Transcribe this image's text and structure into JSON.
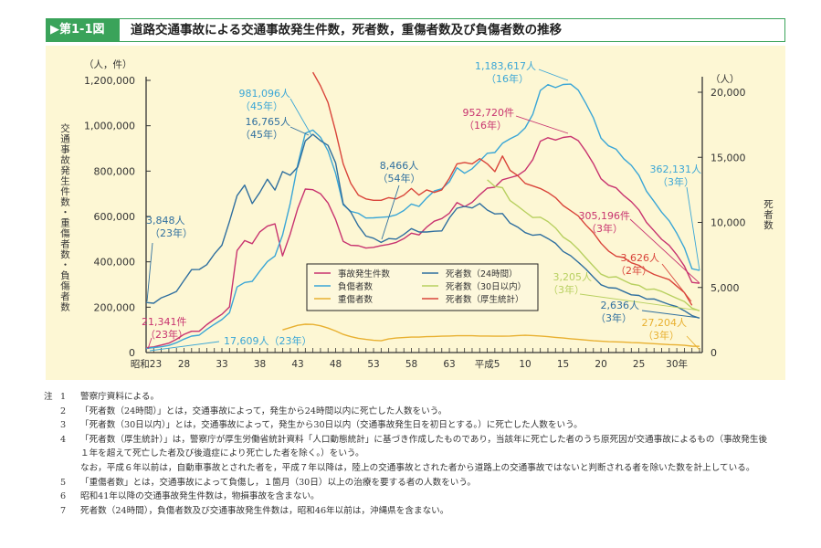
{
  "header": {
    "figure_no": "▶第1-1図",
    "title": "道路交通事故による交通事故発生件数，死者数，重傷者数及び負傷者数の推移"
  },
  "chart_data": {
    "type": "line",
    "title": "道路交通事故による交通事故発生件数，死者数，重傷者数及び負傷者数の推移",
    "x_tick_labels": [
      "昭和23",
      "28",
      "33",
      "38",
      "43",
      "48",
      "53",
      "58",
      "63",
      "平成5",
      "10",
      "15",
      "20",
      "25",
      "30年"
    ],
    "x_tick_years": [
      1948,
      1953,
      1958,
      1963,
      1968,
      1973,
      1978,
      1983,
      1988,
      1993,
      1998,
      2003,
      2008,
      2013,
      2018
    ],
    "xlim": [
      1948,
      2021
    ],
    "y_left": {
      "label": "交通事故発生件数・重傷者数・負傷者数",
      "unit": "（人，件）",
      "ylim": [
        0,
        1200000
      ],
      "ticks": [
        "0",
        "200,000",
        "400,000",
        "600,000",
        "800,000",
        "1,000,000",
        "1,200,000"
      ],
      "tick_values": [
        0,
        200000,
        400000,
        600000,
        800000,
        1000000,
        1200000
      ]
    },
    "y_right": {
      "label": "死者数",
      "unit": "（人）",
      "ylim": [
        0,
        20000
      ],
      "ticks": [
        "0",
        "5,000",
        "10,000",
        "15,000",
        "20,000"
      ],
      "tick_values": [
        0,
        5000,
        10000,
        15000,
        20000
      ]
    },
    "grid": false,
    "legend_position": "center-bottom",
    "series": [
      {
        "name": "事故発生件数",
        "axis": "left",
        "color": "#c8336f",
        "start": 1948,
        "values": [
          21341,
          25113,
          33212,
          41423,
          58487,
          80019,
          93869,
          93981,
          122691,
          146833,
          168799,
          201292,
          449917,
          493693,
          479825,
          531966,
          557183,
          567286,
          425944,
          521481,
          635056,
          720880,
          718080,
          700290,
          659283,
          586713,
          490452,
          472938,
          471041,
          460649,
          464037,
          471573,
          476677,
          485578,
          502261,
          526362,
          518642,
          552788,
          579190,
          590723,
          614481,
          661363,
          643097,
          662392,
          695346,
          724675,
          729461,
          761794,
          771085,
          780401,
          803878,
          850371,
          931950,
          947253,
          936950,
          948281,
          952720,
          934346,
          887257,
          832704,
          766394,
          737637,
          725924,
          692084,
          665157,
          629033,
          573842,
          536899,
          499201,
          472165,
          430601,
          381237,
          309178,
          305196
        ]
      },
      {
        "name": "負傷者数",
        "axis": "left",
        "color": "#3aa6d6",
        "start": 1948,
        "values": [
          17609,
          22242,
          25450,
          31274,
          43321,
          59280,
          72390,
          76501,
          102072,
          124530,
          145432,
          175951,
          289156,
          308697,
          313813,
          359089,
          401117,
          425666,
          517775,
          655377,
          828071,
          967000,
          981096,
          949689,
          889198,
          789948,
          651420,
          622467,
          613957,
          593211,
          594116,
          596282,
          598719,
          607346,
          626192,
          654822,
          644321,
          681346,
          712330,
          722179,
          752845,
          814832,
          790295,
          810245,
          844003,
          878633,
          881723,
          922677,
          942204,
          958925,
          990675,
          1050399,
          1155707,
          1181039,
          1168029,
          1181681,
          1183617,
          1157113,
          1098564,
          1034652,
          945703,
          911215,
          896297,
          854613,
          825392,
          781492,
          711374,
          666023,
          618853,
          580850,
          525846,
          461775,
          369476,
          362131
        ]
      },
      {
        "name": "重傷者数",
        "axis": "left",
        "color": "#e8b030",
        "start": 1966,
        "values": [
          100000,
          110000,
          120000,
          125000,
          124000,
          118000,
          108000,
          95000,
          80000,
          70000,
          63000,
          58000,
          54000,
          52000,
          60000,
          64000,
          66000,
          68000,
          68000,
          70000,
          71000,
          72000,
          73000,
          74000,
          74000,
          74000,
          73000,
          73000,
          72000,
          72000,
          73000,
          75000,
          76000,
          75000,
          73000,
          70000,
          67000,
          64000,
          61000,
          58000,
          55000,
          52000,
          50000,
          48000,
          47000,
          46000,
          44000,
          43000,
          41000,
          39000,
          37000,
          35000,
          34000,
          32000,
          28000,
          27204
        ]
      },
      {
        "name": "死者数（24時間）",
        "axis": "right",
        "color": "#2f6f9f",
        "start": 1948,
        "values": [
          3848,
          3790,
          4202,
          4429,
          4696,
          5544,
          6374,
          6379,
          6751,
          7575,
          8248,
          10079,
          12055,
          12865,
          11445,
          12301,
          13318,
          12484,
          13904,
          13618,
          14256,
          16257,
          16765,
          16278,
          15918,
          14574,
          11432,
          10792,
          9734,
          8945,
          8783,
          8466,
          8760,
          8719,
          9073,
          9520,
          9262,
          9261,
          9317,
          9347,
          10344,
          11086,
          11227,
          11109,
          11452,
          10945,
          10653,
          10684,
          9943,
          9642,
          9214,
          9012,
          9073,
          8757,
          8396,
          7768,
          7436,
          6937,
          6415,
          5796,
          5209,
          4979,
          4948,
          4691,
          4438,
          4388,
          4113,
          4117,
          3904,
          3694,
          3532,
          3215,
          2839,
          2636
        ]
      },
      {
        "name": "死者数（30日以内）",
        "axis": "right",
        "color": "#b8d060",
        "start": 1993,
        "values": [
          13269,
          12768,
          12670,
          11674,
          11254,
          10805,
          10372,
          10403,
          10060,
          9575,
          8877,
          8492,
          7931,
          7272,
          6639,
          6023,
          5772,
          5828,
          5535,
          5261,
          5165,
          4838,
          4885,
          4698,
          4431,
          4166,
          3920,
          3416,
          3205
        ]
      },
      {
        "name": "死者数（厚生統計）",
        "axis": "right",
        "color": "#d9443a",
        "start": 1970,
        "values": [
          21535,
          20500,
          19200,
          17000,
          14500,
          13000,
          12100,
          11800,
          11700,
          11700,
          11900,
          11800,
          12100,
          12600,
          12100,
          12500,
          12300,
          12500,
          13400,
          14500,
          14600,
          14500,
          14900,
          14500,
          13900,
          15100,
          14000,
          13600,
          13000,
          12800,
          12600,
          12300,
          11900,
          11300,
          10900,
          10500,
          9800,
          9200,
          8400,
          7800,
          7400,
          7300,
          6900,
          6700,
          6300,
          6000,
          5800,
          5600,
          5100,
          4600,
          3626
        ]
      }
    ],
    "annotations": [
      {
        "id": "a1",
        "line1": "981,096人",
        "line2": "（45年）",
        "color": "#3aa6d6"
      },
      {
        "id": "a2",
        "line1": "16,765人",
        "line2": "（45年）",
        "color": "#2f6f9f"
      },
      {
        "id": "a3",
        "line1": "3,848人",
        "line2": "（23年）",
        "color": "#2f6f9f"
      },
      {
        "id": "a4",
        "line1": "21,341件",
        "line2": "（23年）",
        "color": "#c8336f"
      },
      {
        "id": "a5",
        "line1": "17,609人（23年）",
        "line2": "",
        "color": "#3aa6d6"
      },
      {
        "id": "a6",
        "line1": "8,466人",
        "line2": "（54年）",
        "color": "#2f6f9f"
      },
      {
        "id": "a7",
        "line1": "1,183,617人",
        "line2": "（16年）",
        "color": "#3aa6d6"
      },
      {
        "id": "a8",
        "line1": "952,720件",
        "line2": "（16年）",
        "color": "#c8336f"
      },
      {
        "id": "a9",
        "line1": "362,131人",
        "line2": "（3年）",
        "color": "#3aa6d6"
      },
      {
        "id": "a10",
        "line1": "305,196件",
        "line2": "（3年）",
        "color": "#c8336f"
      },
      {
        "id": "a11",
        "line1": "3,626人",
        "line2": "（2年）",
        "color": "#d9443a"
      },
      {
        "id": "a12",
        "line1": "3,205人",
        "line2": "（3年）",
        "color": "#b8d060"
      },
      {
        "id": "a13",
        "line1": "2,636人",
        "line2": "（3年）",
        "color": "#2f6f9f"
      },
      {
        "id": "a14",
        "line1": "27,204人",
        "line2": "（3年）",
        "color": "#e8b030"
      }
    ]
  },
  "notes": {
    "label": "注",
    "items": [
      {
        "num": "1",
        "text": "警察庁資料による。"
      },
      {
        "num": "2",
        "text": "「死者数（24時間）」とは，交通事故によって，発生から24時間以内に死亡した人数をいう。"
      },
      {
        "num": "3",
        "text": "「死者数（30日以内）」とは，交通事故によって，発生から30日以内（交通事故発生日を初日とする。）に死亡した人数をいう。"
      },
      {
        "num": "4",
        "text": "「死者数（厚生統計）」は，警察庁が厚生労働省統計資料「人口動態統計」に基づき作成したものであり，当該年に死亡した者のうち原死因が交通事故によるもの（事故発生後１年を超えて死亡した者及び後遺症により死亡した者を除く。）をいう。"
      },
      {
        "num": "",
        "text": "なお，平成６年以前は，自動車事故とされた者を，平成７年以降は，陸上の交通事故とされた者から道路上の交通事故ではないと判断される者を除いた数を計上している。"
      },
      {
        "num": "5",
        "text": "「重傷者数」とは，交通事故によって負傷し，１箇月（30日）以上の治療を要する者の人数をいう。"
      },
      {
        "num": "6",
        "text": "昭和41年以降の交通事故発生件数は，物損事故を含まない。"
      },
      {
        "num": "7",
        "text": "死者数（24時間），負傷者数及び交通事故発生件数は，昭和46年以前は，沖縄県を含まない。"
      }
    ]
  }
}
